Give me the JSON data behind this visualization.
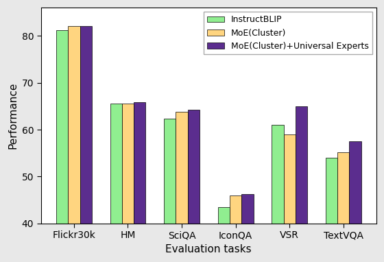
{
  "categories": [
    "Flickr30k",
    "HM",
    "SciQA",
    "IconQA",
    "VSR",
    "TextVQA"
  ],
  "series": [
    {
      "label": "InstructBLIP",
      "color": "#90EE90",
      "values": [
        81.2,
        65.5,
        62.3,
        43.5,
        61.0,
        54.0
      ]
    },
    {
      "label": "MoE(Cluster)",
      "color": "#FFD580",
      "values": [
        82.0,
        65.6,
        63.8,
        46.0,
        59.0,
        55.2
      ]
    },
    {
      "label": "MoE(Cluster)+Universal Experts",
      "color": "#5B2D8E",
      "values": [
        82.1,
        65.8,
        64.3,
        46.3,
        65.0,
        57.5
      ]
    }
  ],
  "ylabel": "Performance",
  "xlabel": "Evaluation tasks",
  "ylim": [
    40,
    86
  ],
  "yticks": [
    40,
    50,
    60,
    70,
    80
  ],
  "bar_width": 0.22,
  "legend_loc": "upper right",
  "figure_bg": "#e8e8e8",
  "axes_bg": "#ffffff"
}
